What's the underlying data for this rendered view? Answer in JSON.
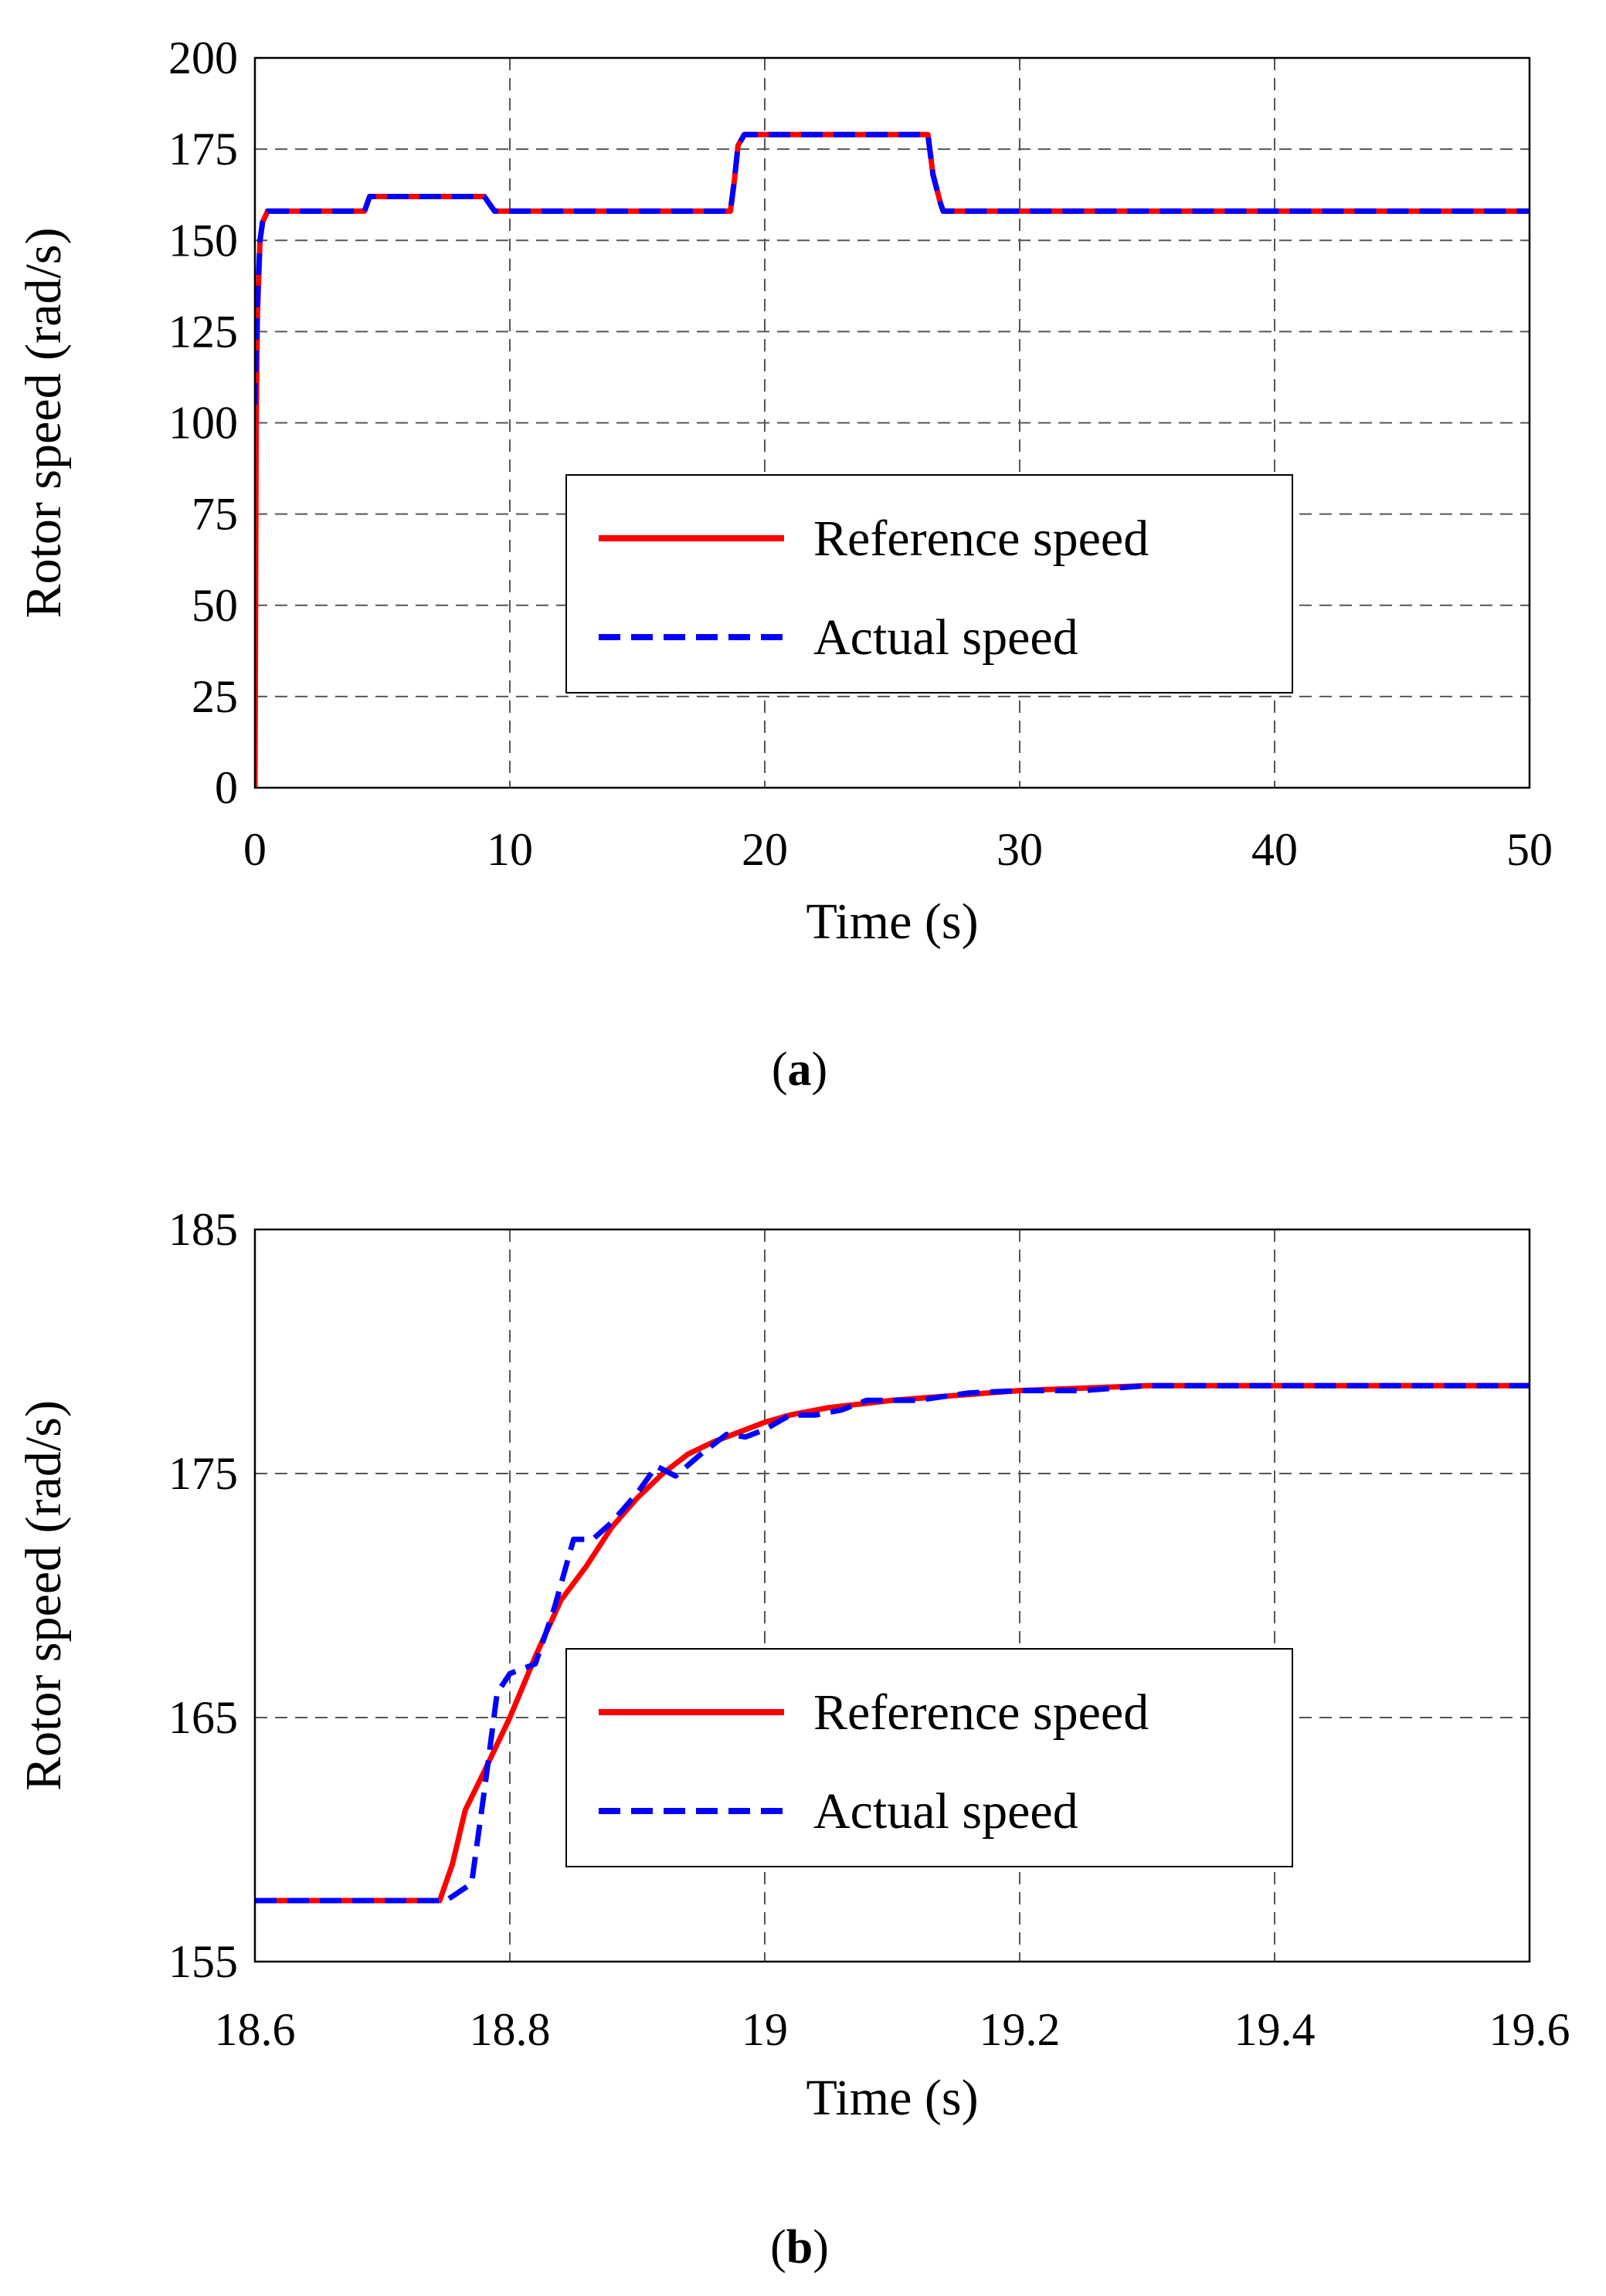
{
  "chart_data": [
    {
      "type": "line",
      "panel": "a",
      "caption_open": "(",
      "caption_letter": "a",
      "caption_close": ")",
      "xlabel": "Time (s)",
      "ylabel": "Rotor speed (rad/s)",
      "xlim": [
        0,
        50
      ],
      "ylim": [
        0,
        200
      ],
      "xticks": [
        0,
        10,
        20,
        30,
        40,
        50
      ],
      "xtick_labels": [
        "0",
        "10",
        "20",
        "30",
        "40",
        "50"
      ],
      "yticks": [
        0,
        25,
        50,
        75,
        100,
        125,
        150,
        175,
        200
      ],
      "ytick_labels": [
        "0",
        "25",
        "50",
        "75",
        "100",
        "125",
        "150",
        "175",
        "200"
      ],
      "grid": true,
      "legend_position": "center",
      "series": [
        {
          "name": "Reference speed",
          "color": "#ff0000",
          "style": "solid",
          "x": [
            0,
            0.05,
            0.1,
            0.2,
            0.3,
            0.5,
            4.3,
            4.5,
            9.0,
            9.4,
            18.65,
            18.8,
            18.95,
            19.2,
            26.4,
            26.6,
            26.9,
            27.0,
            50
          ],
          "y": [
            0,
            100,
            130,
            150,
            155,
            158,
            158,
            162,
            162,
            158,
            158,
            166,
            176,
            179,
            179,
            168,
            160,
            158,
            158
          ]
        },
        {
          "name": "Actual speed",
          "color": "#0000ff",
          "style": "dashed",
          "x": [
            0,
            0.05,
            0.1,
            0.2,
            0.3,
            0.5,
            4.3,
            4.5,
            9.0,
            9.4,
            18.65,
            18.8,
            18.95,
            19.2,
            26.4,
            26.6,
            26.9,
            27.0,
            50
          ],
          "y": [
            105,
            120,
            133,
            150,
            155,
            158,
            158,
            162,
            162,
            158,
            158,
            166,
            176,
            179,
            179,
            168,
            160,
            158,
            158
          ]
        }
      ]
    },
    {
      "type": "line",
      "panel": "b",
      "caption_open": "(",
      "caption_letter": "b",
      "caption_close": ")",
      "xlabel": "Time (s)",
      "ylabel": "Rotor speed (rad/s)",
      "xlim": [
        18.6,
        19.6
      ],
      "ylim": [
        155,
        185
      ],
      "xticks": [
        18.6,
        18.8,
        19.0,
        19.2,
        19.4,
        19.6
      ],
      "xtick_labels": [
        "18.6",
        "18.8",
        "19",
        "19.2",
        "19.4",
        "19.6"
      ],
      "yticks": [
        155,
        165,
        175,
        185
      ],
      "ytick_labels": [
        "155",
        "165",
        "175",
        "185"
      ],
      "grid": true,
      "legend_position": "center",
      "series": [
        {
          "name": "Reference speed",
          "color": "#ff0000",
          "style": "solid",
          "x": [
            18.6,
            18.745,
            18.755,
            18.765,
            18.78,
            18.8,
            18.82,
            18.84,
            18.86,
            18.88,
            18.9,
            18.92,
            18.94,
            18.96,
            18.98,
            19.0,
            19.02,
            19.05,
            19.1,
            19.15,
            19.2,
            19.3,
            19.6
          ],
          "y": [
            157.5,
            157.5,
            159.0,
            161.2,
            162.8,
            165.0,
            167.5,
            169.8,
            171.2,
            172.8,
            174.0,
            175.0,
            175.8,
            176.3,
            176.7,
            177.1,
            177.4,
            177.7,
            178.0,
            178.2,
            178.4,
            178.6,
            178.6
          ]
        },
        {
          "name": "Actual speed",
          "color": "#0000ff",
          "style": "dashed",
          "x": [
            18.6,
            18.75,
            18.77,
            18.78,
            18.79,
            18.8,
            18.82,
            18.835,
            18.85,
            18.865,
            18.88,
            18.9,
            18.915,
            18.93,
            18.95,
            18.97,
            18.985,
            19.0,
            19.02,
            19.04,
            19.06,
            19.08,
            19.12,
            19.16,
            19.2,
            19.25,
            19.3,
            19.6
          ],
          "y": [
            157.5,
            157.5,
            158.2,
            162.0,
            166.0,
            166.8,
            167.2,
            169.5,
            172.3,
            172.3,
            173.0,
            174.2,
            175.3,
            174.9,
            175.8,
            176.6,
            176.5,
            176.8,
            177.4,
            177.4,
            177.6,
            178.0,
            178.0,
            178.3,
            178.4,
            178.4,
            178.6,
            178.6
          ]
        }
      ]
    }
  ]
}
